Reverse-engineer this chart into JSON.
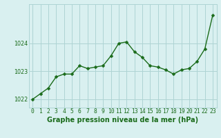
{
  "x": [
    0,
    1,
    2,
    3,
    4,
    5,
    6,
    7,
    8,
    9,
    10,
    11,
    12,
    13,
    14,
    15,
    16,
    17,
    18,
    19,
    20,
    21,
    22,
    23
  ],
  "y": [
    1022.0,
    1022.2,
    1022.4,
    1022.8,
    1022.9,
    1022.9,
    1023.2,
    1023.1,
    1023.15,
    1023.2,
    1023.55,
    1024.0,
    1024.05,
    1023.7,
    1023.5,
    1023.2,
    1023.15,
    1023.05,
    1022.9,
    1023.05,
    1023.1,
    1023.35,
    1023.8,
    1025.0
  ],
  "line_color": "#1a6b1a",
  "marker_color": "#1a6b1a",
  "bg_color": "#d9f0f0",
  "grid_color": "#aed4d4",
  "xlabel": "Graphe pression niveau de la mer (hPa)",
  "xlim": [
    -0.5,
    23.5
  ],
  "ylim": [
    1021.7,
    1025.4
  ],
  "yticks": [
    1022,
    1023,
    1024
  ],
  "xtick_labels": [
    "0",
    "1",
    "2",
    "3",
    "4",
    "5",
    "6",
    "7",
    "8",
    "9",
    "10",
    "11",
    "12",
    "13",
    "14",
    "15",
    "16",
    "17",
    "18",
    "19",
    "20",
    "21",
    "22",
    "23"
  ],
  "label_fontsize": 7.0,
  "tick_fontsize": 5.8,
  "line_width": 1.0,
  "marker_size": 2.5
}
